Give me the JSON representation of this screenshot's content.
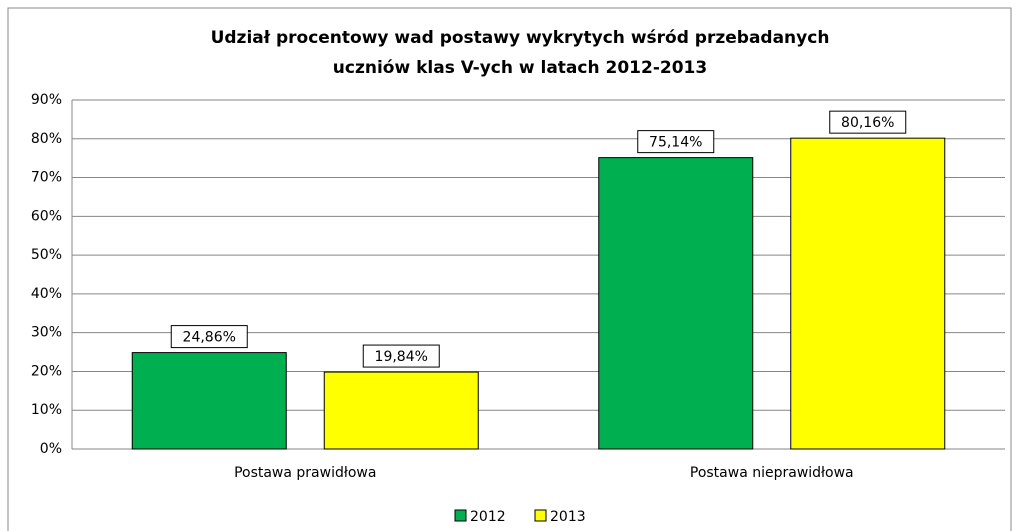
{
  "chart_data": {
    "type": "bar",
    "title": "Udział procentowy wad postawy wykrytych wśród przebadanych uczniów klas V-ych w latach 2012-2013",
    "categories": [
      "Postawa prawidłowa",
      "Postawa nieprawidłowa"
    ],
    "series": [
      {
        "name": "2012",
        "color": "#00b050",
        "values": [
          24.86,
          75.14
        ],
        "value_labels": [
          "24,86%",
          "75,14%"
        ]
      },
      {
        "name": "2013",
        "color": "#ffff00",
        "values": [
          19.84,
          80.16
        ],
        "value_labels": [
          "19,84%",
          "80,16%"
        ]
      }
    ],
    "ylim": [
      0,
      90
    ],
    "yticks": [
      {
        "value": 0,
        "label": "0%"
      },
      {
        "value": 10,
        "label": "10%"
      },
      {
        "value": 20,
        "label": "20%"
      },
      {
        "value": 30,
        "label": "30%"
      },
      {
        "value": 40,
        "label": "40%"
      },
      {
        "value": 50,
        "label": "50%"
      },
      {
        "value": 60,
        "label": "60%"
      },
      {
        "value": 70,
        "label": "70%"
      },
      {
        "value": 80,
        "label": "80%"
      },
      {
        "value": 90,
        "label": "90%"
      }
    ],
    "grid": true,
    "legend": "bottom"
  }
}
